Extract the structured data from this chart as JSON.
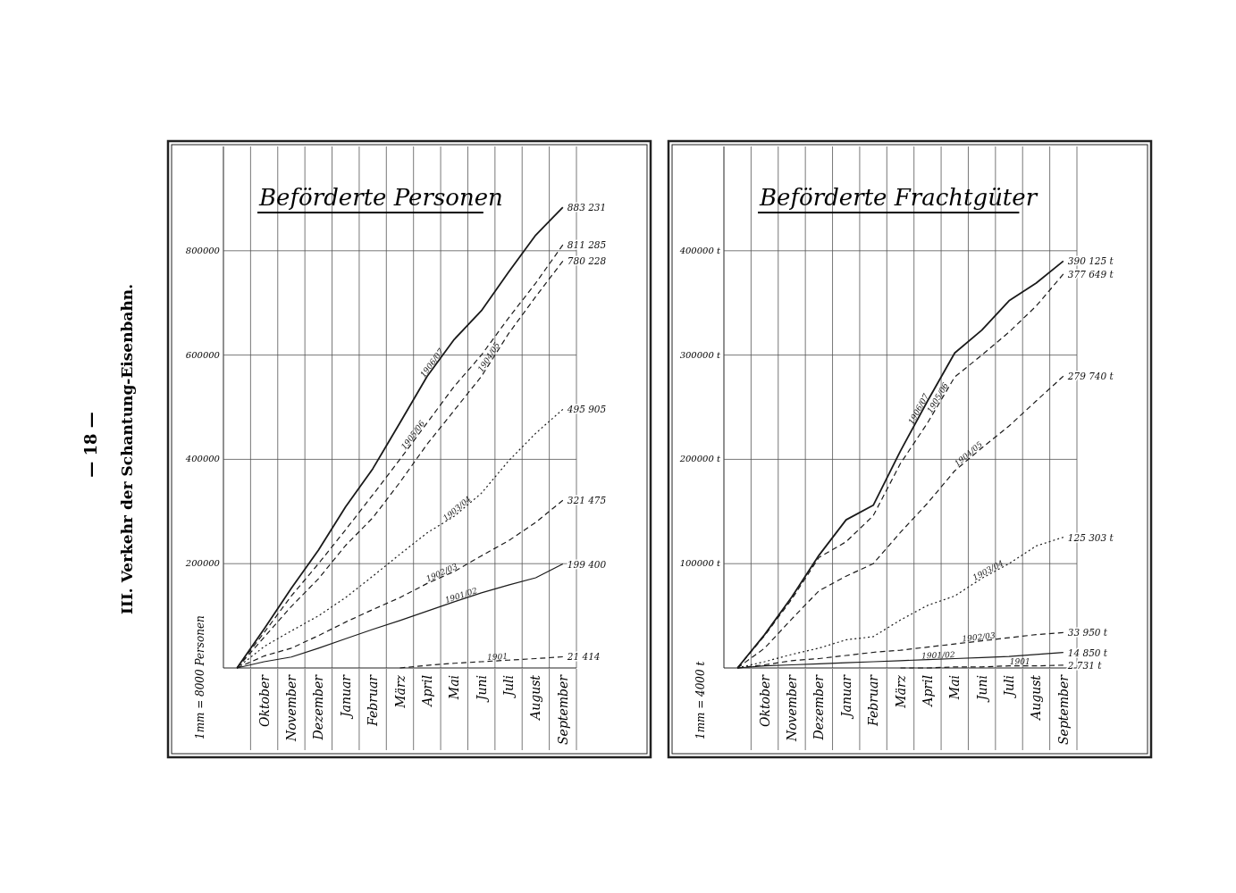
{
  "chart_data": [
    {
      "type": "line",
      "title": "Beförderte Personen",
      "ylabel": "1mm = 8000 Personen",
      "annotations": [
        "— 18 —",
        "III. Verkehr der Schantung-Eisenbahn."
      ],
      "categories": [
        null,
        "Oktober",
        "November",
        "Dezember",
        "Januar",
        "Februar",
        "März",
        "April",
        "Mai",
        "Juni",
        "Juli",
        "August",
        "September"
      ],
      "ylim": [
        0,
        1000000
      ],
      "yticks": [
        200000,
        400000,
        600000,
        800000
      ],
      "grid": true,
      "marker": "none",
      "series": [
        {
          "name": "1906/07",
          "color": "#1a1a1a",
          "line_style": "solid",
          "values": [
            0,
            75000,
            153000,
            226000,
            309000,
            382000,
            470000,
            559000,
            630000,
            685000,
            759000,
            830000,
            883231
          ],
          "value_labels": [
            null,
            null,
            null,
            null,
            null,
            null,
            null,
            null,
            null,
            null,
            null,
            null,
            "883 231"
          ]
        },
        {
          "name": "1905/06",
          "color": "#1a1a1a",
          "line_style": "dashed",
          "values": [
            0,
            68000,
            138000,
            200000,
            265000,
            332000,
            400000,
            470000,
            540000,
            600000,
            671000,
            738000,
            811285
          ],
          "value_labels": [
            null,
            null,
            null,
            null,
            null,
            null,
            null,
            null,
            null,
            null,
            null,
            null,
            "811 285"
          ]
        },
        {
          "name": "1904/05",
          "color": "#1a1a1a",
          "line_style": "dashed",
          "values": [
            0,
            59000,
            118000,
            171000,
            235000,
            288000,
            356000,
            429000,
            494000,
            559000,
            641000,
            712000,
            780228
          ],
          "value_labels": [
            null,
            null,
            null,
            null,
            null,
            null,
            null,
            null,
            null,
            null,
            null,
            null,
            "780 228"
          ]
        },
        {
          "name": "1903/04",
          "color": "#1a1a1a",
          "line_style": "dotted",
          "values": [
            0,
            41000,
            71000,
            100000,
            135000,
            176000,
            218000,
            259000,
            291000,
            335000,
            397000,
            450000,
            495905
          ],
          "value_labels": [
            null,
            null,
            null,
            null,
            null,
            null,
            null,
            null,
            null,
            null,
            null,
            null,
            "495 905"
          ]
        },
        {
          "name": "1902/03",
          "color": "#1a1a1a",
          "line_style": "dashed",
          "values": [
            0,
            23000,
            38000,
            62000,
            88000,
            112000,
            135000,
            162000,
            185000,
            215000,
            244000,
            279000,
            321475
          ],
          "value_labels": [
            null,
            null,
            null,
            null,
            null,
            null,
            null,
            null,
            null,
            null,
            null,
            null,
            "321 475"
          ]
        },
        {
          "name": "1901/02",
          "color": "#1a1a1a",
          "line_style": "solid",
          "values": [
            0,
            12000,
            21000,
            38000,
            56000,
            74000,
            91000,
            109000,
            127000,
            144000,
            159000,
            173000,
            199400
          ],
          "value_labels": [
            null,
            null,
            null,
            null,
            null,
            null,
            null,
            null,
            null,
            null,
            null,
            null,
            "199 400"
          ]
        },
        {
          "name": "1901",
          "color": "#1a1a1a",
          "line_style": "dashed",
          "values": [
            null,
            null,
            null,
            null,
            null,
            null,
            0,
            5000,
            9000,
            12000,
            15000,
            18000,
            21414
          ],
          "value_labels": [
            null,
            null,
            null,
            null,
            null,
            null,
            null,
            null,
            null,
            null,
            null,
            null,
            "21 414"
          ]
        }
      ]
    },
    {
      "type": "line",
      "title": "Beförderte Frachtgüter",
      "ylabel": "1mm = 4000 t",
      "categories": [
        null,
        "Oktober",
        "November",
        "Dezember",
        "Januar",
        "Februar",
        "März",
        "April",
        "Mai",
        "Juni",
        "Juli",
        "August",
        "September"
      ],
      "ylim": [
        0,
        500000
      ],
      "yticks": [
        {
          "value": 100000,
          "label": "100000 t"
        },
        {
          "value": 200000,
          "label": "200000 t"
        },
        {
          "value": 300000,
          "label": "300000 t"
        },
        {
          "value": 400000,
          "label": "400000 t"
        }
      ],
      "grid": true,
      "marker": "none",
      "series": [
        {
          "name": "1906/07",
          "color": "#1a1a1a",
          "line_style": "solid",
          "values": [
            0,
            32000,
            68000,
            108000,
            142000,
            156000,
            208000,
            256000,
            302000,
            324000,
            352000,
            369000,
            390125
          ],
          "value_labels": [
            null,
            null,
            null,
            null,
            null,
            null,
            null,
            null,
            null,
            null,
            null,
            null,
            "390 125 t"
          ]
        },
        {
          "name": "1905/06",
          "color": "#1a1a1a",
          "line_style": "dashed",
          "values": [
            0,
            31000,
            66000,
            106000,
            121000,
            146000,
            196000,
            235000,
            279000,
            300000,
            322000,
            347000,
            377649
          ],
          "value_labels": [
            null,
            null,
            null,
            null,
            null,
            null,
            null,
            null,
            null,
            null,
            null,
            null,
            "377 649 t"
          ]
        },
        {
          "name": "1904/05",
          "color": "#1a1a1a",
          "line_style": "dashed",
          "values": [
            0,
            19000,
            47000,
            74000,
            88000,
            100000,
            130000,
            158000,
            189000,
            211000,
            232000,
            256000,
            279740
          ],
          "value_labels": [
            null,
            null,
            null,
            null,
            null,
            null,
            null,
            null,
            null,
            null,
            null,
            null,
            "279 740 t"
          ]
        },
        {
          "name": "1903/04",
          "color": "#1a1a1a",
          "line_style": "dotted",
          "values": [
            0,
            6000,
            13000,
            19000,
            27000,
            30000,
            46000,
            60000,
            69000,
            86000,
            100000,
            117000,
            125303
          ],
          "value_labels": [
            null,
            null,
            null,
            null,
            null,
            null,
            null,
            null,
            null,
            null,
            null,
            null,
            "125 303 t"
          ]
        },
        {
          "name": "1902/03",
          "color": "#1a1a1a",
          "line_style": "dashed",
          "values": [
            0,
            3000,
            7000,
            9000,
            12000,
            15000,
            17000,
            20000,
            23000,
            26000,
            29000,
            32000,
            33950
          ],
          "value_labels": [
            null,
            null,
            null,
            null,
            null,
            null,
            null,
            null,
            null,
            null,
            null,
            null,
            "33 950 t"
          ]
        },
        {
          "name": "1901/02",
          "color": "#1a1a1a",
          "line_style": "solid",
          "values": [
            0,
            2000,
            3000,
            4000,
            5000,
            6000,
            7000,
            8000,
            9000,
            10000,
            11000,
            13000,
            14850
          ],
          "value_labels": [
            null,
            null,
            null,
            null,
            null,
            null,
            null,
            null,
            null,
            null,
            null,
            null,
            "14 850 t"
          ]
        },
        {
          "name": "1901",
          "color": "#1a1a1a",
          "line_style": "dashed",
          "values": [
            null,
            null,
            null,
            null,
            null,
            null,
            0,
            0,
            1000,
            1000,
            2000,
            2000,
            2731
          ],
          "value_labels": [
            null,
            null,
            null,
            null,
            null,
            null,
            null,
            null,
            null,
            null,
            null,
            null,
            "2 731 t"
          ]
        }
      ]
    }
  ]
}
